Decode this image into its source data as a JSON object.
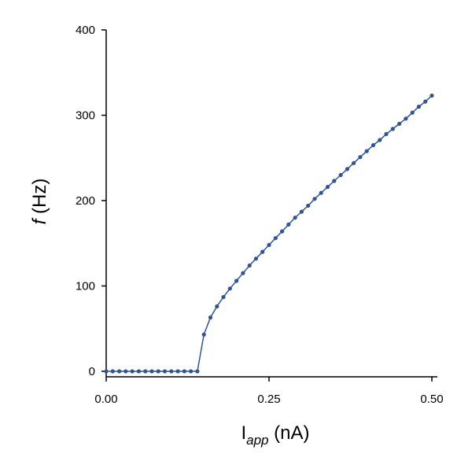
{
  "chart_data": {
    "type": "line",
    "xlabel": {
      "main": "I",
      "sub": "app",
      "unit": " (nA)"
    },
    "ylabel": {
      "main": "f",
      "unit": " (Hz)"
    },
    "xlim": [
      0,
      0.5
    ],
    "ylim": [
      0,
      400
    ],
    "x_ticks": [
      "0.00",
      "0.25",
      "0.50"
    ],
    "y_ticks": [
      "0",
      "100",
      "200",
      "300",
      "400"
    ],
    "series_color": "#2f5597",
    "series": [
      {
        "x": [
          0.0,
          0.01,
          0.02,
          0.03,
          0.04,
          0.05,
          0.06,
          0.07,
          0.08,
          0.09,
          0.1,
          0.11,
          0.12,
          0.13,
          0.14,
          0.15,
          0.16,
          0.17,
          0.18,
          0.19,
          0.2,
          0.21,
          0.22,
          0.23,
          0.24,
          0.25,
          0.26,
          0.27,
          0.28,
          0.29,
          0.3,
          0.31,
          0.32,
          0.33,
          0.34,
          0.35,
          0.36,
          0.37,
          0.38,
          0.39,
          0.4,
          0.41,
          0.42,
          0.43,
          0.44,
          0.45,
          0.46,
          0.47,
          0.48,
          0.49,
          0.5
        ],
        "y": [
          0,
          0,
          0,
          0,
          0,
          0,
          0,
          0,
          0,
          0,
          0,
          0,
          0,
          0,
          0,
          43,
          63,
          76,
          87,
          97,
          106,
          115,
          124,
          132,
          140,
          148,
          156,
          164,
          172,
          180,
          187,
          194,
          202,
          209,
          216,
          223,
          230,
          237,
          244,
          251,
          258,
          265,
          271,
          278,
          284,
          290,
          296,
          303,
          310,
          316,
          323
        ]
      }
    ]
  }
}
